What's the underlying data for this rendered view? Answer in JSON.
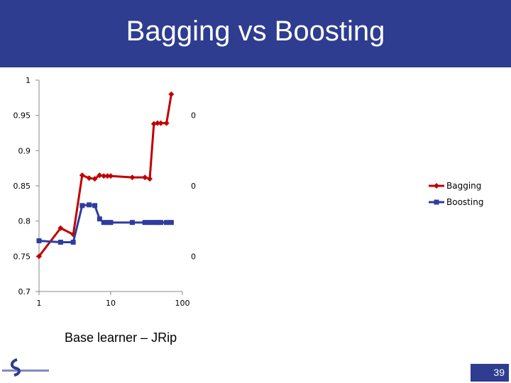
{
  "slide": {
    "title": "Bagging vs Boosting",
    "caption": "Base learner – JRip",
    "page_number": "39"
  },
  "colors": {
    "header": "#2e3d8f",
    "bagging": "#c00000",
    "boosting": "#2e3d9e"
  },
  "chart_data": {
    "type": "line",
    "title": "",
    "xlabel": "",
    "ylabel": "",
    "x_scale": "log",
    "xlim": [
      1,
      100
    ],
    "ylim": [
      0.7,
      1
    ],
    "x_ticks": [
      "1",
      "10",
      "100"
    ],
    "y_ticks": [
      "0.7",
      "0.75",
      "0.8",
      "0.85",
      "0.9",
      "0.95",
      "1"
    ],
    "clipped_right_tick_labels": [
      "0",
      "0",
      "0"
    ],
    "legend_position": "right",
    "series": [
      {
        "name": "Bagging",
        "marker": "diamond",
        "color": "#c00000",
        "x": [
          1,
          2,
          3,
          4,
          5,
          6,
          7,
          8,
          9,
          10,
          20,
          30,
          35,
          40,
          45,
          50,
          60,
          70
        ],
        "y": [
          0.75,
          0.79,
          0.781,
          0.865,
          0.861,
          0.86,
          0.865,
          0.864,
          0.864,
          0.864,
          0.862,
          0.862,
          0.86,
          0.938,
          0.939,
          0.939,
          0.939,
          0.98
        ]
      },
      {
        "name": "Boosting",
        "marker": "square",
        "color": "#2e3d9e",
        "x": [
          1,
          2,
          3,
          4,
          5,
          6,
          7,
          8,
          9,
          10,
          20,
          30,
          35,
          40,
          45,
          50,
          60,
          70
        ],
        "y": [
          0.772,
          0.77,
          0.77,
          0.822,
          0.823,
          0.822,
          0.803,
          0.798,
          0.798,
          0.798,
          0.798,
          0.798,
          0.798,
          0.798,
          0.798,
          0.798,
          0.798,
          0.798
        ]
      }
    ]
  }
}
